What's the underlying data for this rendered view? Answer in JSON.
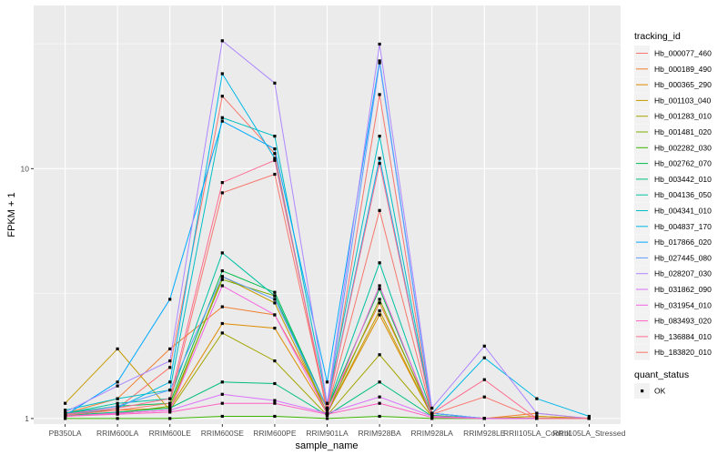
{
  "chart_data": {
    "type": "line",
    "title": "",
    "xlabel": "sample_name",
    "ylabel": "FPKM + 1",
    "yscale": "log",
    "ylim": [
      0.95,
      45
    ],
    "yticks": [
      1,
      10
    ],
    "ytick_labels": [
      "1",
      "10"
    ],
    "grid": true,
    "background": "#ebebeb",
    "legend_position": "right",
    "categories": [
      "PB350LA",
      "RRIM600LA",
      "RRIM600LE",
      "RRIM600SE",
      "RRIM600PE",
      "RRIM901LA",
      "RRIM928BA",
      "RRIM928LA",
      "RRIM928LE",
      "RRII105LA_Control",
      "RRII105LA_Stressed"
    ],
    "legend_color_title": "tracking_id",
    "legend_shape_title": "quant_status",
    "legend_shape_entries": [
      "OK"
    ],
    "series": [
      {
        "name": "Hb_000077_460",
        "color": "#F8766D",
        "values": [
          1.02,
          1.1,
          1.6,
          19.5,
          11.5,
          1.05,
          19.8,
          1.02,
          1.0,
          1.0,
          1.0
        ]
      },
      {
        "name": "Hb_000189_490",
        "color": "#F07F30",
        "values": [
          1.05,
          1.2,
          1.9,
          2.8,
          2.6,
          1.1,
          2.9,
          1.05,
          1.0,
          1.05,
          1.0
        ]
      },
      {
        "name": "Hb_000365_290",
        "color": "#DE8C00",
        "values": [
          1.05,
          1.08,
          1.1,
          2.4,
          2.3,
          1.05,
          2.6,
          1.02,
          1.0,
          1.02,
          1.0
        ]
      },
      {
        "name": "Hb_001103_040",
        "color": "#C49A00",
        "values": [
          1.15,
          1.9,
          1.08,
          3.7,
          2.9,
          1.05,
          2.7,
          1.02,
          1.0,
          1.02,
          1.0
        ]
      },
      {
        "name": "Hb_001283_010",
        "color": "#A3A500",
        "values": [
          1.03,
          1.05,
          1.08,
          2.2,
          1.7,
          1.03,
          1.8,
          1.02,
          1.0,
          1.0,
          1.0
        ]
      },
      {
        "name": "Hb_001481_020",
        "color": "#7CAE00",
        "values": [
          1.02,
          1.05,
          1.12,
          3.6,
          3.1,
          1.05,
          3.0,
          1.02,
          1.0,
          1.0,
          1.0
        ]
      },
      {
        "name": "Hb_002282_030",
        "color": "#39B600",
        "values": [
          1.0,
          1.0,
          1.0,
          1.02,
          1.02,
          1.0,
          1.02,
          1.0,
          1.0,
          1.0,
          1.0
        ]
      },
      {
        "name": "Hb_002762_070",
        "color": "#00BB4E",
        "values": [
          1.05,
          1.12,
          1.15,
          3.9,
          3.2,
          1.1,
          3.3,
          1.03,
          1.0,
          1.0,
          1.0
        ]
      },
      {
        "name": "Hb_003442_010",
        "color": "#00BF7D",
        "values": [
          1.03,
          1.06,
          1.1,
          1.4,
          1.38,
          1.03,
          1.4,
          1.02,
          1.0,
          1.0,
          1.0
        ]
      },
      {
        "name": "Hb_004136_050",
        "color": "#00C1A3",
        "values": [
          1.05,
          1.15,
          1.2,
          4.6,
          3.1,
          1.1,
          4.2,
          1.05,
          1.0,
          1.0,
          1.0
        ]
      },
      {
        "name": "Hb_004341_010",
        "color": "#00BFC4",
        "values": [
          1.08,
          1.2,
          1.3,
          16.0,
          13.5,
          1.15,
          13.5,
          1.05,
          1.0,
          1.0,
          1.0
        ]
      },
      {
        "name": "Hb_004837_170",
        "color": "#00B8E7",
        "values": [
          1.03,
          1.1,
          1.4,
          24.0,
          11.0,
          1.1,
          11.0,
          1.05,
          1.75,
          1.2,
          1.02
        ]
      },
      {
        "name": "Hb_017866_020",
        "color": "#00A9FF",
        "values": [
          1.03,
          1.4,
          3.0,
          15.5,
          12.0,
          1.4,
          27.0,
          1.05,
          1.0,
          1.0,
          1.0
        ]
      },
      {
        "name": "Hb_027445_080",
        "color": "#619CFF",
        "values": [
          1.04,
          1.12,
          1.3,
          3.7,
          3.0,
          1.1,
          26.5,
          1.05,
          1.0,
          1.0,
          1.0
        ]
      },
      {
        "name": "Hb_028207_030",
        "color": "#AE87FF",
        "values": [
          1.06,
          1.35,
          1.7,
          32.5,
          22.0,
          1.15,
          31.5,
          1.1,
          1.95,
          1.05,
          1.0
        ]
      },
      {
        "name": "Hb_031862_090",
        "color": "#DB72FB",
        "values": [
          1.02,
          1.05,
          1.08,
          1.25,
          1.18,
          1.05,
          1.22,
          1.02,
          1.0,
          1.0,
          1.0
        ]
      },
      {
        "name": "Hb_031954_010",
        "color": "#F564E3",
        "values": [
          1.02,
          1.05,
          1.08,
          3.4,
          2.6,
          1.05,
          3.4,
          1.02,
          1.0,
          1.0,
          1.0
        ]
      },
      {
        "name": "Hb_083493_020",
        "color": "#FF61C3",
        "values": [
          1.02,
          1.04,
          1.06,
          1.15,
          1.15,
          1.04,
          1.15,
          1.01,
          1.0,
          1.0,
          1.0
        ]
      },
      {
        "name": "Hb_136884_010",
        "color": "#FF6C91",
        "values": [
          1.04,
          1.1,
          1.2,
          8.8,
          10.8,
          1.1,
          10.5,
          1.05,
          1.43,
          1.0,
          1.0
        ]
      },
      {
        "name": "Hb_183820_010",
        "color": "#F8766D",
        "values": [
          1.03,
          1.08,
          1.15,
          8.0,
          9.5,
          1.08,
          6.8,
          1.04,
          1.22,
          1.0,
          1.0
        ]
      }
    ]
  }
}
